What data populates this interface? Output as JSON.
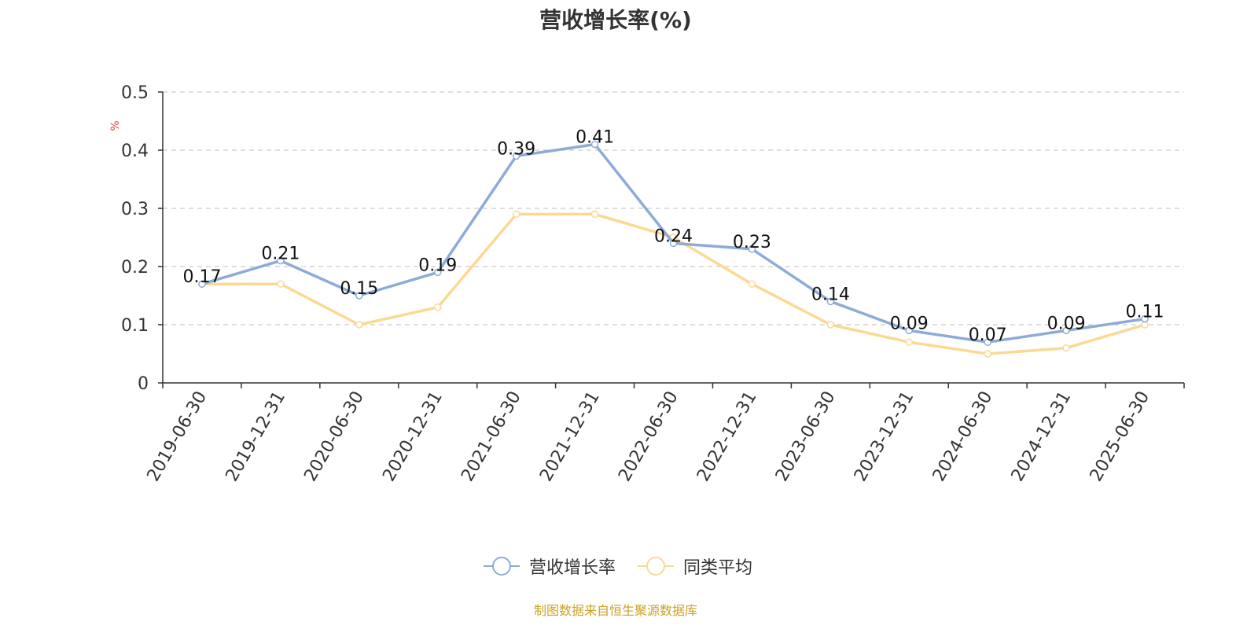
{
  "chart_data": {
    "type": "line",
    "title": "营收增长率(%)",
    "ylabel": "%",
    "xlabel": "",
    "categories": [
      "2019-06-30",
      "2019-12-31",
      "2020-06-30",
      "2020-12-31",
      "2021-06-30",
      "2021-12-31",
      "2022-06-30",
      "2022-12-31",
      "2023-06-30",
      "2023-12-31",
      "2024-06-30",
      "2024-12-31",
      "2025-06-30"
    ],
    "ylim": [
      0,
      0.5
    ],
    "yticks": [
      "0",
      "0.1",
      "0.2",
      "0.3",
      "0.4",
      "0.5"
    ],
    "grid": true,
    "legend_position": "bottom",
    "series": [
      {
        "name": "营收增长率",
        "color": "#8eabd7",
        "show_labels": true,
        "values": [
          0.17,
          0.21,
          0.15,
          0.19,
          0.39,
          0.41,
          0.24,
          0.23,
          0.14,
          0.09,
          0.07,
          0.09,
          0.11
        ]
      },
      {
        "name": "同类平均",
        "color": "#fbd994",
        "show_labels": false,
        "values": [
          0.17,
          0.17,
          0.1,
          0.13,
          0.29,
          0.29,
          0.25,
          0.17,
          0.1,
          0.07,
          0.05,
          0.06,
          0.1
        ]
      }
    ]
  },
  "footer": {
    "source": "制图数据来自恒生聚源数据库"
  }
}
